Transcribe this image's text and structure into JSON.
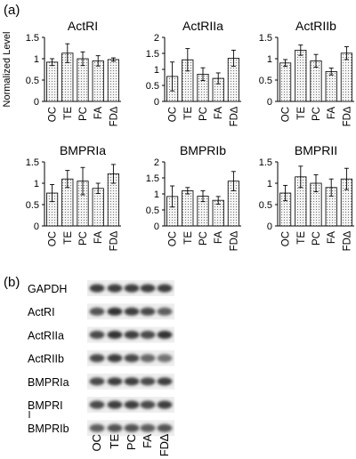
{
  "panel_labels": {
    "a": "(a)",
    "b": "(b)"
  },
  "ylabel": "Normalized Level",
  "categories": [
    "OC",
    "TE",
    "PC",
    "FA",
    "FD∆"
  ],
  "chart_data": [
    {
      "type": "bar",
      "title": "ActRI",
      "categories": [
        "OC",
        "TE",
        "PC",
        "FA",
        "FD∆"
      ],
      "values": [
        0.92,
        1.13,
        1.0,
        0.95,
        0.98
      ],
      "errors": [
        0.08,
        0.22,
        0.16,
        0.12,
        0.04
      ],
      "ylim": [
        0,
        1.5
      ],
      "yticks": [
        "0",
        "0.5",
        "1",
        "1.5"
      ],
      "ylabel": "Normalized Level"
    },
    {
      "type": "bar",
      "title": "ActRIIa",
      "categories": [
        "OC",
        "TE",
        "PC",
        "FA",
        "FD∆"
      ],
      "values": [
        0.78,
        1.3,
        0.85,
        0.72,
        1.35
      ],
      "errors": [
        0.45,
        0.35,
        0.2,
        0.17,
        0.25
      ],
      "ylim": [
        0,
        2
      ],
      "yticks": [
        "0",
        "0.5",
        "1",
        "1.5",
        "2"
      ],
      "ylabel": ""
    },
    {
      "type": "bar",
      "title": "ActRIIb",
      "categories": [
        "OC",
        "TE",
        "PC",
        "FA",
        "FD∆"
      ],
      "values": [
        0.9,
        1.2,
        0.95,
        0.7,
        1.13
      ],
      "errors": [
        0.08,
        0.12,
        0.15,
        0.08,
        0.15
      ],
      "ylim": [
        0,
        1.5
      ],
      "yticks": [
        "0",
        "0.5",
        "1",
        "1.5"
      ],
      "ylabel": ""
    },
    {
      "type": "bar",
      "title": "BMPRIa",
      "categories": [
        "OC",
        "TE",
        "PC",
        "FA",
        "FD∆"
      ],
      "values": [
        0.77,
        1.1,
        1.05,
        0.88,
        1.22
      ],
      "errors": [
        0.2,
        0.2,
        0.32,
        0.12,
        0.22
      ],
      "ylim": [
        0,
        1.5
      ],
      "yticks": [
        "0",
        "0.5",
        "1",
        "1.5"
      ],
      "ylabel": ""
    },
    {
      "type": "bar",
      "title": "BMPRIb",
      "categories": [
        "OC",
        "TE",
        "PC",
        "FA",
        "FD∆"
      ],
      "values": [
        0.92,
        1.1,
        0.93,
        0.8,
        1.4
      ],
      "errors": [
        0.33,
        0.1,
        0.17,
        0.12,
        0.3
      ],
      "ylim": [
        0,
        2
      ],
      "yticks": [
        "0",
        "0.5",
        "1",
        "1.5",
        "2"
      ],
      "ylabel": ""
    },
    {
      "type": "bar",
      "title": "BMPRII",
      "categories": [
        "OC",
        "TE",
        "PC",
        "FA",
        "FD∆"
      ],
      "values": [
        0.77,
        1.15,
        1.0,
        0.9,
        1.1
      ],
      "errors": [
        0.18,
        0.25,
        0.2,
        0.2,
        0.25
      ],
      "ylim": [
        0,
        1.5
      ],
      "yticks": [
        "0",
        "0.5",
        "1",
        "1.5"
      ],
      "ylabel": ""
    }
  ],
  "blot": {
    "rows": [
      "GAPDH",
      "ActRI",
      "ActRIIa",
      "ActRIIb",
      "BMPRIa",
      "BMPRI",
      "BMPRIb"
    ],
    "lanes": [
      "OC",
      "TE",
      "PC",
      "FA",
      "FD∆"
    ],
    "band_intensity": [
      [
        0.9,
        0.9,
        0.9,
        0.9,
        0.9
      ],
      [
        0.8,
        0.95,
        0.9,
        0.85,
        0.75
      ],
      [
        0.85,
        0.95,
        0.9,
        0.85,
        0.95
      ],
      [
        0.85,
        0.9,
        0.85,
        0.7,
        0.65
      ],
      [
        0.85,
        0.9,
        0.9,
        0.85,
        0.9
      ],
      [
        0.85,
        0.9,
        0.9,
        0.85,
        0.9
      ],
      [
        0.75,
        0.8,
        0.8,
        0.75,
        0.8
      ]
    ]
  }
}
